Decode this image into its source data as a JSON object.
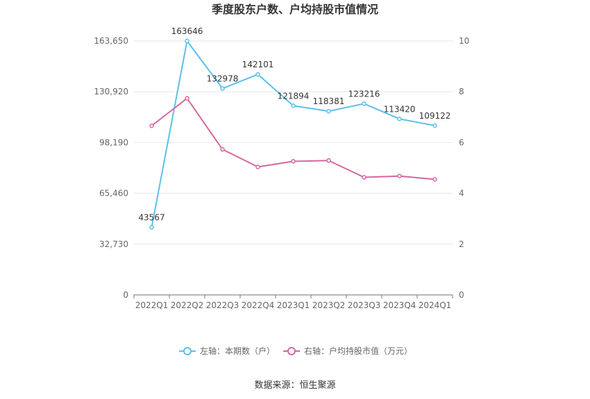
{
  "chart_data": {
    "type": "line",
    "title": "季度股东户数、户均持股市值情况",
    "categories": [
      "2022Q1",
      "2022Q2",
      "2022Q3",
      "2022Q4",
      "2023Q1",
      "2023Q2",
      "2023Q3",
      "2023Q4",
      "2024Q1"
    ],
    "left_axis": {
      "min": 0,
      "max": 163650,
      "ticks": [
        0,
        32730,
        65460,
        98190,
        130920,
        163650
      ],
      "tick_labels": [
        "0",
        "32,730",
        "65,460",
        "98,190",
        "130,920",
        "163,650"
      ]
    },
    "right_axis": {
      "min": 0,
      "max": 10,
      "ticks": [
        0,
        2,
        4,
        6,
        8,
        10
      ],
      "tick_labels": [
        "0",
        "2",
        "4",
        "6",
        "8",
        "10"
      ]
    },
    "series": [
      {
        "name": "左轴：本期数（户）",
        "axis": "left",
        "color": "#5bc0eb",
        "values": [
          43567,
          163646,
          132978,
          142101,
          121894,
          118381,
          123216,
          113420,
          109122
        ],
        "labels": [
          "43567",
          "163646",
          "132978",
          "142101",
          "121894",
          "118381",
          "123216",
          "113420",
          "109122"
        ]
      },
      {
        "name": "右轴：户均持股市值（万元）",
        "axis": "right",
        "color": "#d4679f",
        "values": [
          6.66,
          7.74,
          5.73,
          5.04,
          5.26,
          5.29,
          4.63,
          4.68,
          4.55
        ]
      }
    ],
    "legend_position": "bottom",
    "grid": true
  },
  "source_text": "数据来源：恒生聚源"
}
